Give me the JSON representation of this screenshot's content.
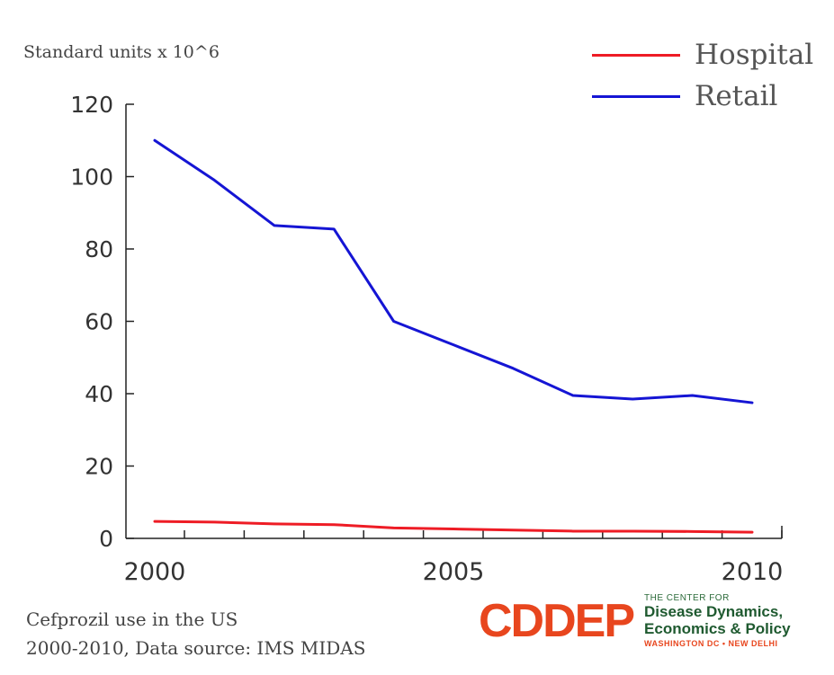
{
  "chart_data": {
    "type": "line",
    "title": "",
    "ylabel": "Standard units x 10^6",
    "xlabel": "",
    "x": [
      2000,
      2001,
      2002,
      2003,
      2004,
      2005,
      2006,
      2007,
      2008,
      2009,
      2010
    ],
    "xlim": [
      1999.5,
      2010.5
    ],
    "ylim": [
      0,
      120
    ],
    "xticks": [
      2000,
      2005,
      2010
    ],
    "yticks": [
      0,
      20,
      40,
      60,
      80,
      100,
      120
    ],
    "legend_position": "top-right",
    "grid": false,
    "series": [
      {
        "name": "Hospital",
        "color": "#ee1c25",
        "values": [
          4.7,
          4.5,
          4.0,
          3.8,
          2.9,
          2.6,
          2.3,
          2.0,
          2.0,
          1.9,
          1.7
        ]
      },
      {
        "name": "Retail",
        "color": "#1515d4",
        "values": [
          110,
          99,
          86.5,
          85.5,
          60,
          53.5,
          47,
          39.5,
          38.5,
          39.5,
          37.5
        ]
      }
    ]
  },
  "caption": {
    "line1": "Cefprozil use in the US",
    "line2": "2000-2010, Data source: IMS MIDAS"
  },
  "logo": {
    "mark": "CDDEP",
    "small": "THE CENTER FOR",
    "line1": "Disease Dynamics,",
    "line2": "Economics & Policy",
    "location": "WASHINGTON DC • NEW DELHI"
  }
}
